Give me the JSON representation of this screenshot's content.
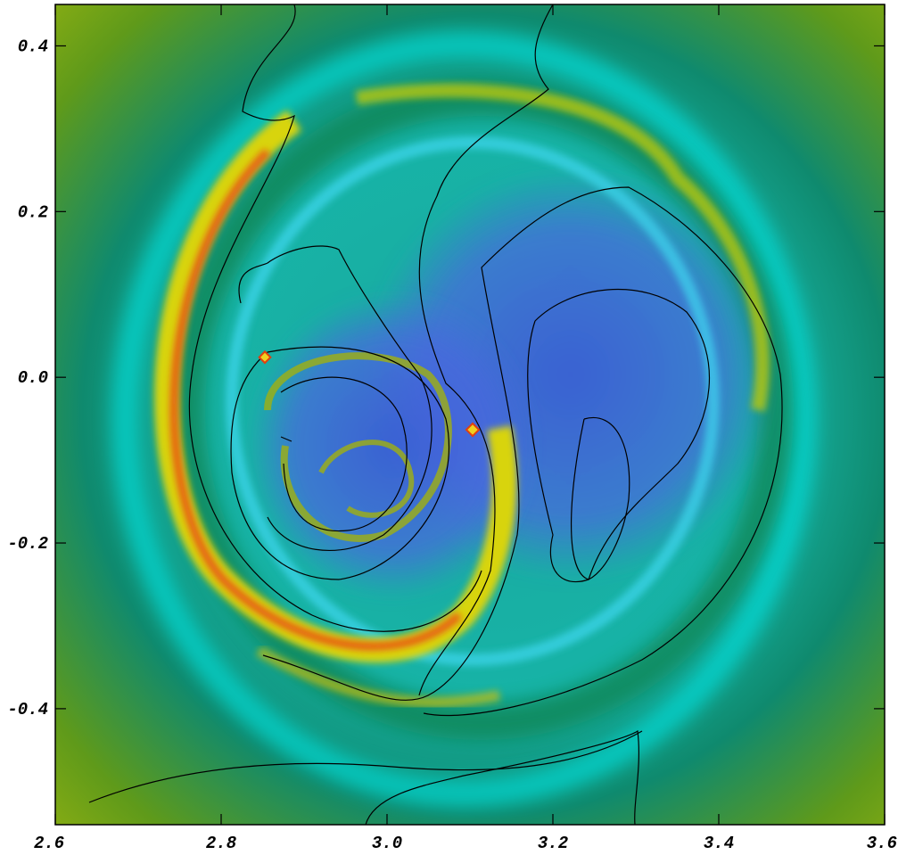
{
  "chart_data": {
    "type": "heatmap",
    "xlim": [
      2.6,
      3.6
    ],
    "ylim": [
      -0.54,
      0.45
    ],
    "xticks": [
      2.6,
      2.8,
      {
        "value": 3,
        "label": "3.0"
      },
      3.2,
      3.4,
      3.6
    ],
    "yticks": [
      0.4,
      0.2,
      {
        "value": 0,
        "label": "0.0"
      },
      -0.2,
      -0.4
    ]
  }
}
